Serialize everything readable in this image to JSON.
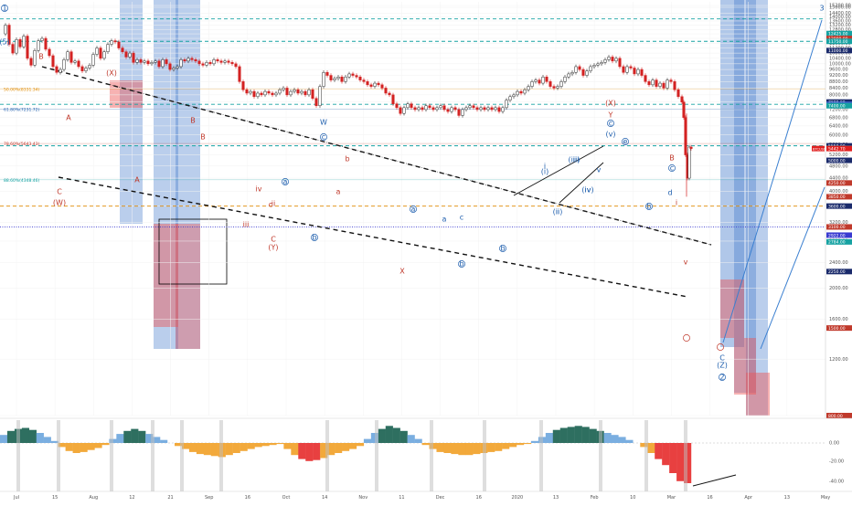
{
  "chart_data": {
    "type": "candlestick",
    "symbol_tag": "BTCUSD",
    "last_price": "5442.70",
    "price_range": [
      800,
      15200
    ],
    "x_ticks": [
      "Jul",
      "15",
      "Aug",
      "12",
      "21",
      "Sep",
      "16",
      "Oct",
      "14",
      "Nov",
      "11",
      "Dec",
      "16",
      "2020",
      "13",
      "Feb",
      "10",
      "Mar",
      "16",
      "Apr",
      "13",
      "May"
    ],
    "right_axis_ticks": [
      15200,
      15000,
      14400,
      14000,
      13600,
      13200,
      12800,
      12400,
      12000,
      11600,
      11200,
      10800,
      10400,
      10000,
      9600,
      9200,
      8800,
      8400,
      8000,
      7600,
      7200,
      6800,
      6400,
      6000,
      5600,
      5200,
      4800,
      4400,
      4000,
      3600,
      3200,
      2800,
      2400,
      2000,
      1600,
      1200,
      800
    ],
    "right_axis_boxes": [
      {
        "label": "12425.00",
        "price": 12425,
        "color": "#16a2a2"
      },
      {
        "label": "12000.00",
        "price": 12000,
        "color": "#c0392b"
      },
      {
        "label": "11750.00",
        "price": 11750,
        "color": "#16a2a2"
      },
      {
        "label": "11000.00",
        "price": 11000,
        "color": "#1a2a6b"
      },
      {
        "label": "7600.00",
        "price": 7600,
        "color": "#1a2a6b"
      },
      {
        "label": "7475.00",
        "price": 7475,
        "color": "#3a60c8"
      },
      {
        "label": "7400.00",
        "price": 7400,
        "color": "#16a2a2"
      },
      {
        "label": "5550.00",
        "price": 5550,
        "color": "#1a2a6b"
      },
      {
        "label": "5450.00",
        "price": 5450,
        "color": "#16a2a2"
      },
      {
        "label": "5000.00",
        "price": 5000,
        "color": "#1a2a6b"
      },
      {
        "label": "5442.70",
        "price": 5442.7,
        "color": "#e02020"
      },
      {
        "label": "4250.00",
        "price": 4250,
        "color": "#c0392b"
      },
      {
        "label": "3850.00",
        "price": 3850,
        "color": "#c0392b"
      },
      {
        "label": "3600.00",
        "price": 3600,
        "color": "#1a2a6b"
      },
      {
        "label": "3100.00",
        "price": 3100,
        "color": "#c0392b"
      },
      {
        "label": "2922.00",
        "price": 2922,
        "color": "#3a3ad0"
      },
      {
        "label": "2784.00",
        "price": 2784,
        "color": "#16a2a2"
      },
      {
        "label": "2250.00",
        "price": 2250,
        "color": "#1a2a6b"
      },
      {
        "label": "1500.00",
        "price": 1500,
        "color": "#c0392b"
      },
      {
        "label": "800.00",
        "price": 800,
        "color": "#c0392b"
      }
    ],
    "fib_levels": [
      {
        "label": "50.00%(8331.34)",
        "price": 8331.34,
        "color": "#e08a00"
      },
      {
        "label": "61.80%(7231.72)",
        "price": 7231.72,
        "color": "#1f5fae"
      },
      {
        "label": "78.60%(5643.43)",
        "price": 5643.43,
        "color": "#c0392b"
      },
      {
        "label": "88.60%(4348.46)",
        "price": 4348.46,
        "color": "#16a2a2"
      }
    ],
    "horizontal_levels": [
      {
        "price": 13800,
        "style": "dashed",
        "color": "#16a2a2",
        "label": "13800.00"
      },
      {
        "price": 11750,
        "style": "dashed",
        "color": "#16a2a2"
      },
      {
        "price": 7475,
        "style": "dashed",
        "color": "#16a2a2"
      },
      {
        "price": 5550,
        "style": "dashed",
        "color": "#16a2a2"
      },
      {
        "price": 3600,
        "style": "dashed",
        "color": "#e08a00"
      },
      {
        "price": 3100,
        "style": "dotted",
        "color": "#3a3ad0"
      }
    ],
    "wave_labels_blue": [
      "1",
      "(5)",
      "c",
      "W",
      "c",
      "(v)",
      "(iii)",
      "(i)",
      "(iv)",
      "(ii)",
      "a",
      "b",
      "a",
      "b",
      "e",
      "b",
      "c",
      "b",
      "C",
      "(Z)",
      "2",
      "3",
      "i",
      "iii",
      "iv",
      "ii",
      "v",
      "d",
      "a",
      "c"
    ],
    "wave_labels_red": [
      "B",
      "(X)",
      "A",
      "C",
      "(W)",
      "B",
      "A",
      "B",
      "(Y)",
      "C",
      "X",
      "(X)",
      "Y",
      "B",
      "a",
      "b",
      "c",
      "iii",
      "iv",
      "ii",
      "v",
      "i"
    ],
    "oscillator": {
      "zero_label": "0.00",
      "upper_label": "20.00",
      "lower_label": "-20.00",
      "bottom_label": "-40.00"
    },
    "oscillator_values": [
      8,
      12,
      14,
      15,
      13,
      10,
      6,
      2,
      -4,
      -8,
      -10,
      -9,
      -7,
      -5,
      -2,
      4,
      9,
      12,
      14,
      12,
      9,
      6,
      3,
      0,
      -3,
      -6,
      -9,
      -11,
      -12,
      -13,
      -14,
      -12,
      -10,
      -8,
      -6,
      -4,
      -3,
      -2,
      -1,
      -6,
      -12,
      -16,
      -18,
      -17,
      -15,
      -12,
      -10,
      -8,
      -6,
      -3,
      4,
      10,
      14,
      17,
      15,
      12,
      8,
      4,
      -2,
      -6,
      -9,
      -10,
      -11,
      -12,
      -12,
      -11,
      -10,
      -9,
      -8,
      -6,
      -4,
      -2,
      -1,
      2,
      6,
      10,
      13,
      15,
      16,
      17,
      16,
      14,
      12,
      10,
      8,
      6,
      3,
      0,
      -4,
      -10,
      -16,
      -22,
      -30,
      -38,
      -40
    ]
  }
}
